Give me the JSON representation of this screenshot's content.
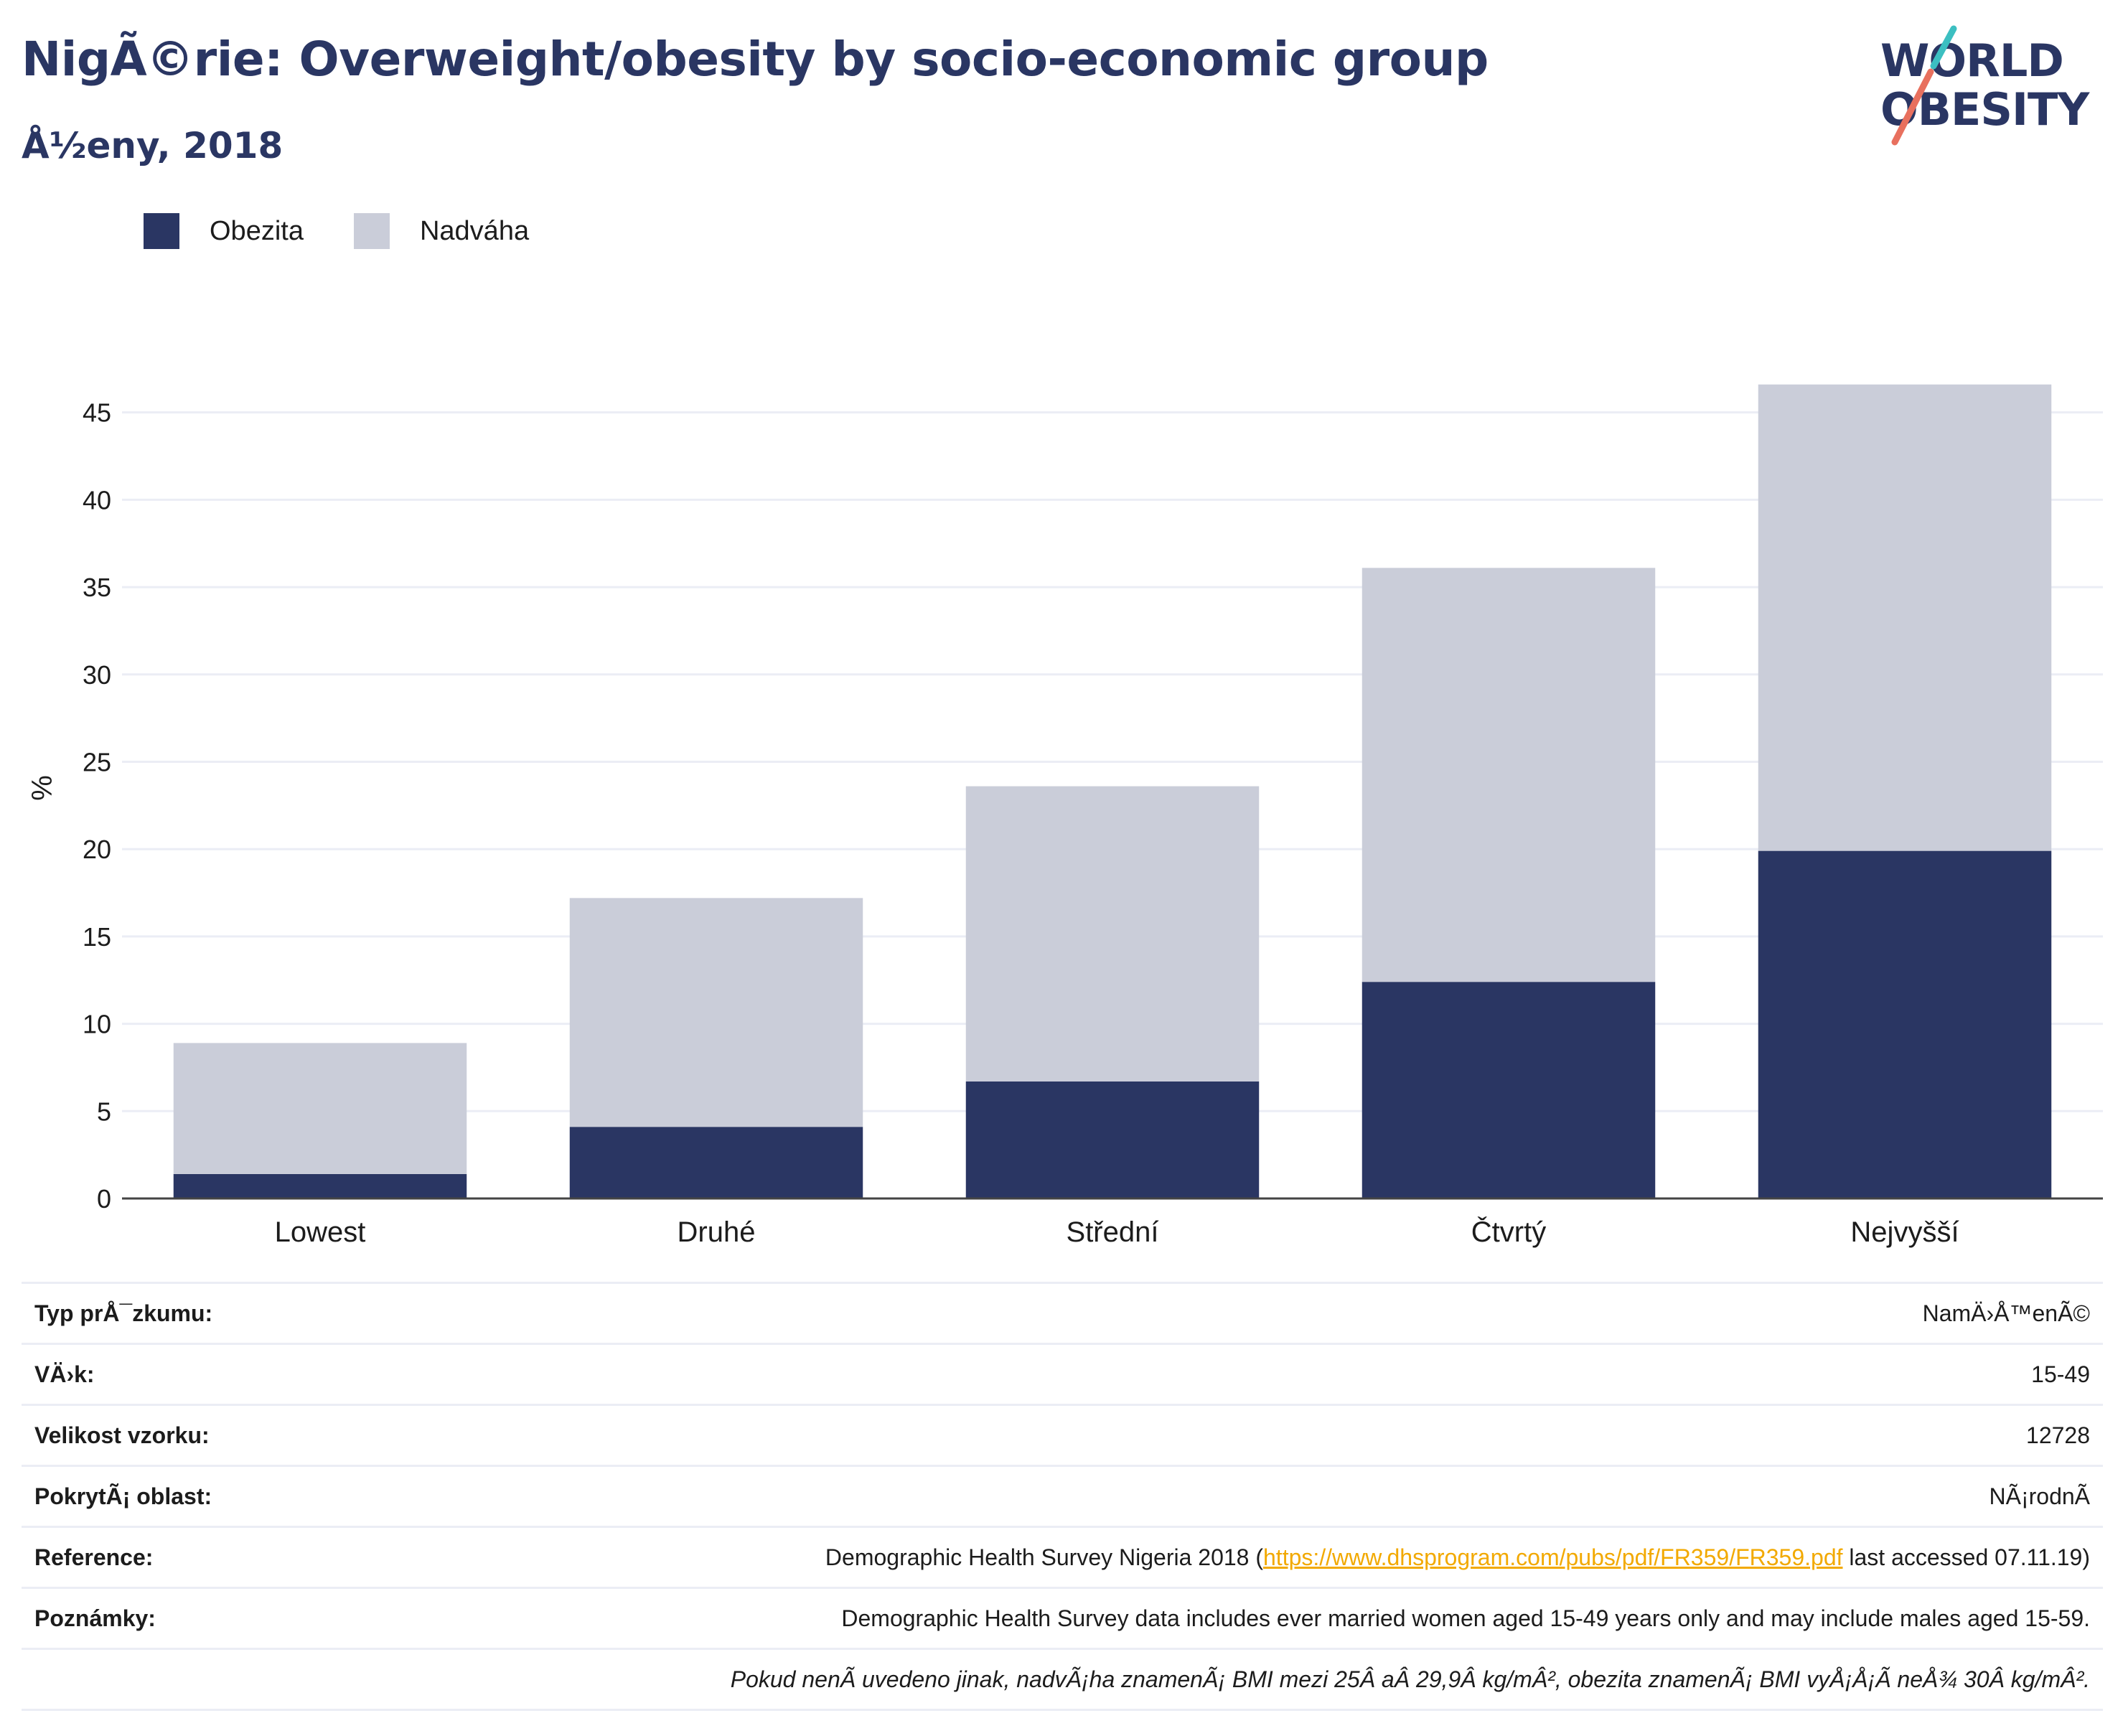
{
  "header": {
    "title": "NigÃ©rie: Overweight/obesity by socio-economic group",
    "subtitle": "Å½eny, 2018"
  },
  "logo": {
    "line1": "WORLD",
    "line2": "OBESITY",
    "slash_colors": [
      "#3cbfc1",
      "#e8705e"
    ]
  },
  "legend": [
    {
      "label": "Obezita",
      "color": "#2a3663"
    },
    {
      "label": "Nadváha",
      "color": "#cacdd9"
    }
  ],
  "chart_data": {
    "type": "bar",
    "stacked": true,
    "categories": [
      "Lowest",
      "Druhé",
      "Střední",
      "Čtvrtý",
      "Nejvyšší"
    ],
    "series": [
      {
        "name": "Obezita",
        "color": "#2a3663",
        "values": [
          1.4,
          4.1,
          6.7,
          12.4,
          19.9
        ]
      },
      {
        "name": "Nadváha",
        "color": "#cacdd9",
        "values": [
          7.5,
          13.1,
          16.9,
          23.7,
          26.7
        ]
      }
    ],
    "totals": [
      8.9,
      17.2,
      23.6,
      36.1,
      46.6
    ],
    "ylabel": "%",
    "ylim": [
      0,
      47
    ],
    "yticks": [
      0,
      5,
      10,
      15,
      20,
      25,
      30,
      35,
      40,
      45
    ],
    "grid": true
  },
  "info": [
    {
      "label": "Typ prÅ¯zkumu:",
      "value": "NamÄ›Å™enÃ©"
    },
    {
      "label": "VÄ›k:",
      "value": "15-49"
    },
    {
      "label": "Velikost vzorku:",
      "value": "12728"
    },
    {
      "label": "PokrytÃ¡ oblast:",
      "value": "NÃ¡rodnÃ"
    },
    {
      "label": "Reference:",
      "value_pre": "Demographic Health Survey Nigeria 2018 (",
      "link": "https://www.dhsprogram.com/pubs/pdf/FR359/FR359.pdf",
      "value_post": " last accessed 07.11.19)"
    },
    {
      "label": "Poznámky:",
      "value": "Demographic Health Survey data includes ever married women aged 15-49 years only and may include males aged 15-59."
    },
    {
      "label": "",
      "value": "Pokud nenÃ uvedeno jinak, nadvÃ¡ha znamenÃ¡ BMI mezi 25Â aÂ 29,9Â kg/mÂ², obezita znamenÃ¡ BMI vyÅ¡Å¡Ã neÅ¾ 30Â kg/mÂ²."
    }
  ]
}
